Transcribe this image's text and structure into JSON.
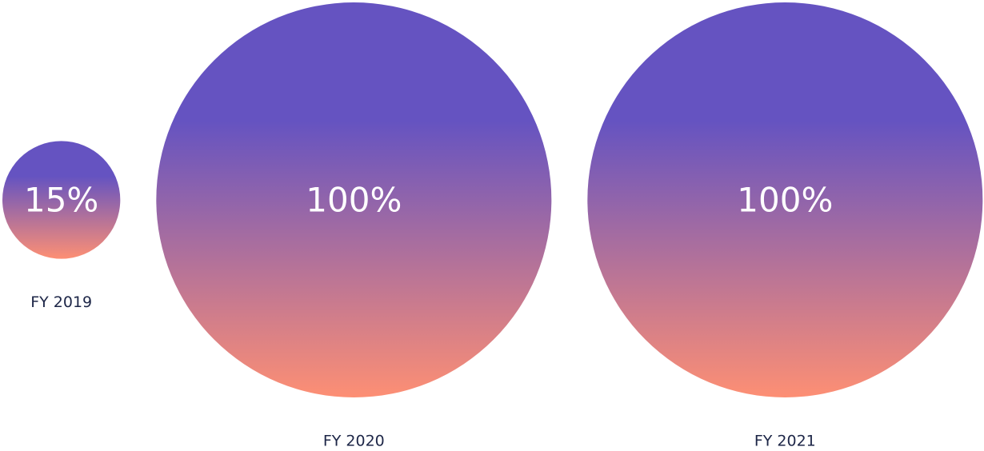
{
  "chart_data": {
    "type": "bubble",
    "categories": [
      "FY 2019",
      "FY 2020",
      "FY 2021"
    ],
    "values": [
      15,
      100,
      100
    ],
    "value_labels": [
      "15%",
      "100%",
      "100%"
    ],
    "gradient": [
      "#6553c1",
      "#fd8f74"
    ]
  }
}
